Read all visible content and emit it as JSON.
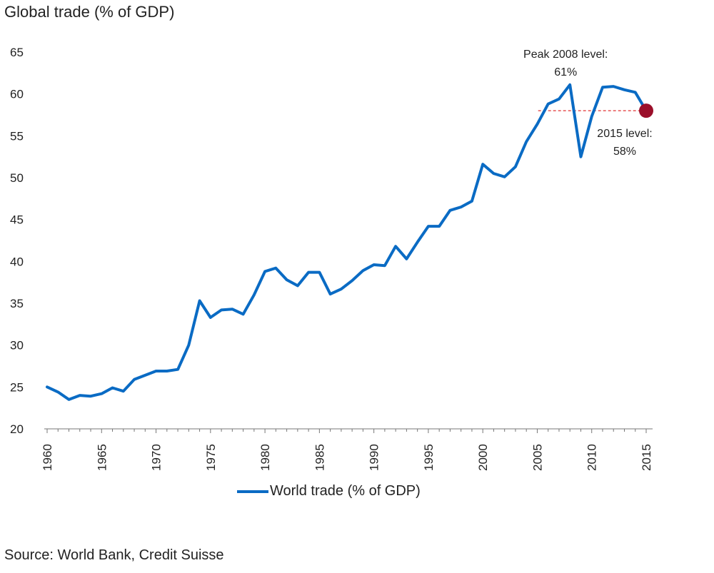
{
  "chart_data": {
    "type": "line",
    "title": "Global trade (% of GDP)",
    "xlabel": "",
    "ylabel": "",
    "xlim": [
      1960,
      2015
    ],
    "ylim": [
      20,
      65
    ],
    "yticks": [
      20,
      25,
      30,
      35,
      40,
      45,
      50,
      55,
      60,
      65
    ],
    "xticks": [
      1960,
      1965,
      1970,
      1975,
      1980,
      1985,
      1990,
      1995,
      2000,
      2005,
      2010,
      2015
    ],
    "grid": false,
    "legend_position": "bottom",
    "series": [
      {
        "name": "World trade (% of GDP)",
        "color": "#0a6bc4",
        "x": [
          1960,
          1961,
          1962,
          1963,
          1964,
          1965,
          1966,
          1967,
          1968,
          1969,
          1970,
          1971,
          1972,
          1973,
          1974,
          1975,
          1976,
          1977,
          1978,
          1979,
          1980,
          1981,
          1982,
          1983,
          1984,
          1985,
          1986,
          1987,
          1988,
          1989,
          1990,
          1991,
          1992,
          1993,
          1994,
          1995,
          1996,
          1997,
          1998,
          1999,
          2000,
          2001,
          2002,
          2003,
          2004,
          2005,
          2006,
          2007,
          2008,
          2009,
          2010,
          2011,
          2012,
          2013,
          2014,
          2015
        ],
        "y": [
          25.0,
          24.4,
          23.5,
          24.0,
          23.9,
          24.2,
          24.9,
          24.5,
          25.9,
          26.4,
          26.9,
          26.9,
          27.1,
          30.0,
          35.3,
          33.3,
          34.2,
          34.3,
          33.7,
          36.0,
          38.8,
          39.2,
          37.8,
          37.1,
          38.7,
          38.7,
          36.1,
          36.7,
          37.7,
          38.9,
          39.6,
          39.5,
          41.8,
          40.3,
          42.3,
          44.2,
          44.2,
          46.1,
          46.5,
          47.2,
          51.6,
          50.5,
          50.1,
          51.3,
          54.3,
          56.4,
          58.8,
          59.4,
          61.1,
          52.5,
          57.3,
          60.8,
          60.9,
          60.5,
          60.2,
          58.0
        ]
      }
    ],
    "reference_line": {
      "y": 58.0,
      "x_start": 2006,
      "x_end": 2015,
      "color": "#e03030",
      "style": "dashed"
    },
    "highlight_point": {
      "x": 2015,
      "y": 58.0,
      "color": "#9b0f2a"
    },
    "annotations": [
      {
        "lines": [
          "Peak 2008 level:",
          "61%"
        ],
        "x": 2008,
        "y": 61.1,
        "placement": "above"
      },
      {
        "lines": [
          "2015 level:",
          "58%"
        ],
        "x": 2015,
        "y": 58.0,
        "placement": "below"
      }
    ]
  },
  "legend": {
    "label": "World trade (% of GDP)"
  },
  "source": "Source: World Bank, Credit Suisse"
}
